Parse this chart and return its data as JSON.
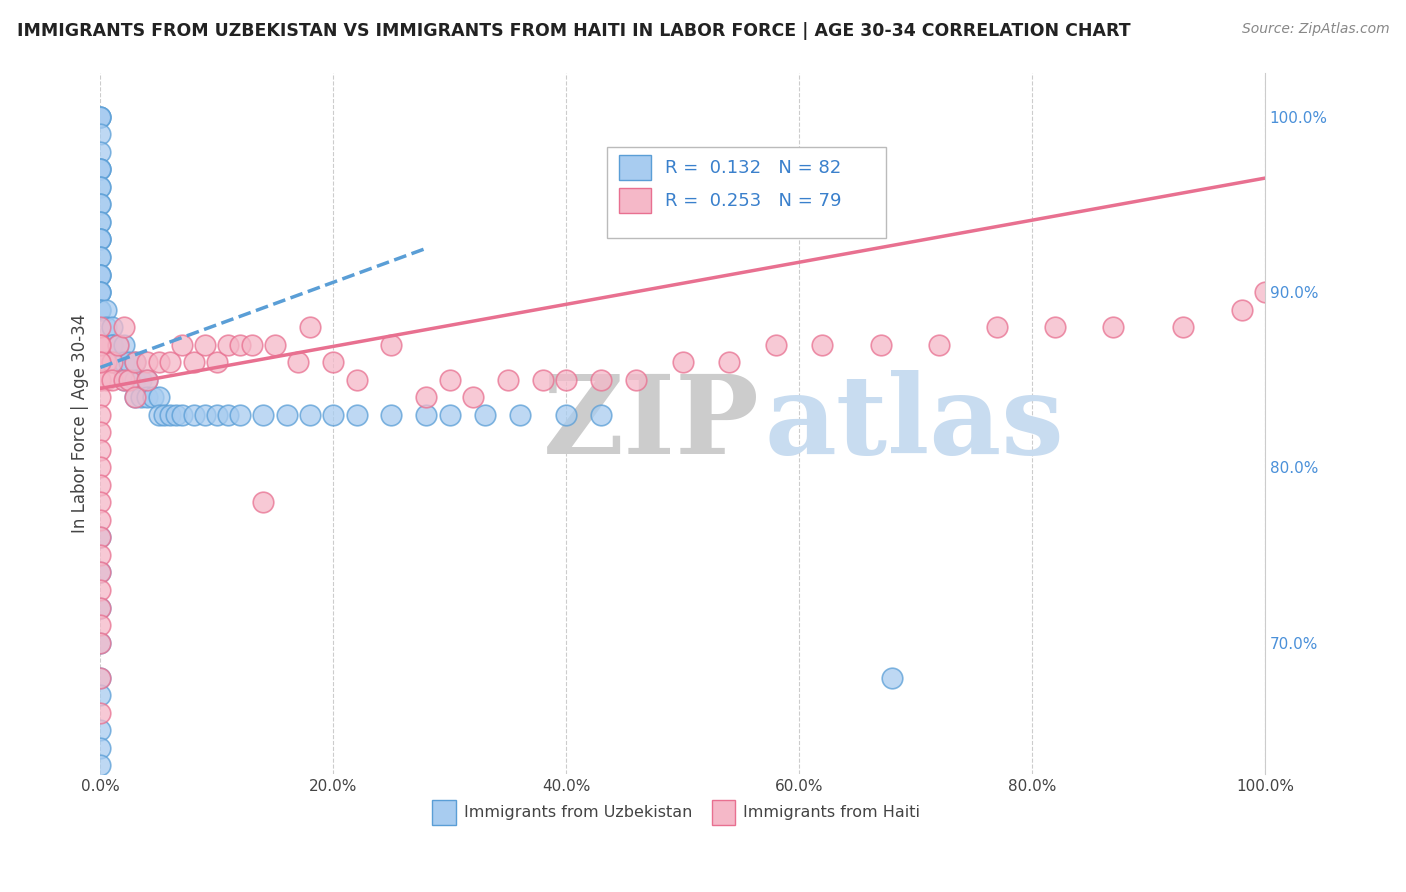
{
  "title": "IMMIGRANTS FROM UZBEKISTAN VS IMMIGRANTS FROM HAITI IN LABOR FORCE | AGE 30-34 CORRELATION CHART",
  "source": "Source: ZipAtlas.com",
  "ylabel": "In Labor Force | Age 30-34",
  "xlim": [
    0,
    1.0
  ],
  "ylim": [
    0.625,
    1.025
  ],
  "legend_r1": "0.132",
  "legend_n1": "82",
  "legend_r2": "0.253",
  "legend_n2": "79",
  "color_uzbekistan_fill": "#A8CCF0",
  "color_uzbekistan_edge": "#5A9ED6",
  "color_haiti_fill": "#F5B8C8",
  "color_haiti_edge": "#E87090",
  "color_line_uz": "#5A9ED6",
  "color_line_ht": "#E87090",
  "uz_x": [
    0.0,
    0.0,
    0.0,
    0.0,
    0.0,
    0.0,
    0.0,
    0.0,
    0.0,
    0.0,
    0.0,
    0.0,
    0.0,
    0.0,
    0.0,
    0.0,
    0.0,
    0.0,
    0.0,
    0.0,
    0.0,
    0.0,
    0.0,
    0.0,
    0.0,
    0.0,
    0.0,
    0.005,
    0.005,
    0.005,
    0.01,
    0.01,
    0.01,
    0.01,
    0.015,
    0.015,
    0.02,
    0.02,
    0.02,
    0.025,
    0.025,
    0.03,
    0.03,
    0.03,
    0.035,
    0.035,
    0.04,
    0.04,
    0.045,
    0.05,
    0.05,
    0.055,
    0.06,
    0.065,
    0.07,
    0.08,
    0.09,
    0.1,
    0.11,
    0.12,
    0.14,
    0.16,
    0.18,
    0.2,
    0.22,
    0.25,
    0.28,
    0.3,
    0.33,
    0.36,
    0.4,
    0.43,
    0.0,
    0.0,
    0.0,
    0.0,
    0.0,
    0.0,
    0.0,
    0.0,
    0.68,
    0.0
  ],
  "uz_y": [
    1.0,
    1.0,
    1.0,
    0.99,
    0.98,
    0.97,
    0.97,
    0.97,
    0.96,
    0.96,
    0.95,
    0.95,
    0.94,
    0.94,
    0.93,
    0.93,
    0.93,
    0.92,
    0.92,
    0.91,
    0.91,
    0.91,
    0.9,
    0.9,
    0.9,
    0.89,
    0.89,
    0.89,
    0.88,
    0.87,
    0.88,
    0.87,
    0.87,
    0.86,
    0.87,
    0.86,
    0.87,
    0.86,
    0.85,
    0.86,
    0.85,
    0.86,
    0.85,
    0.84,
    0.85,
    0.84,
    0.85,
    0.84,
    0.84,
    0.84,
    0.83,
    0.83,
    0.83,
    0.83,
    0.83,
    0.83,
    0.83,
    0.83,
    0.83,
    0.83,
    0.83,
    0.83,
    0.83,
    0.83,
    0.83,
    0.83,
    0.83,
    0.83,
    0.83,
    0.83,
    0.83,
    0.83,
    0.76,
    0.74,
    0.72,
    0.7,
    0.68,
    0.67,
    0.65,
    0.64,
    0.68,
    0.63
  ],
  "ht_x": [
    0.0,
    0.0,
    0.0,
    0.0,
    0.0,
    0.0,
    0.0,
    0.0,
    0.0,
    0.0,
    0.0,
    0.005,
    0.005,
    0.01,
    0.01,
    0.015,
    0.02,
    0.02,
    0.025,
    0.03,
    0.03,
    0.04,
    0.04,
    0.05,
    0.06,
    0.07,
    0.08,
    0.09,
    0.1,
    0.11,
    0.12,
    0.13,
    0.14,
    0.15,
    0.17,
    0.18,
    0.2,
    0.22,
    0.25,
    0.28,
    0.3,
    0.32,
    0.35,
    0.38,
    0.4,
    0.43,
    0.46,
    0.5,
    0.54,
    0.58,
    0.62,
    0.67,
    0.72,
    0.77,
    0.82,
    0.87,
    0.93,
    0.98,
    1.0,
    0.0,
    0.0,
    0.0,
    0.0,
    0.0,
    0.0,
    0.0,
    0.0,
    0.0,
    0.0,
    0.0,
    0.0,
    0.0,
    0.0,
    0.0,
    0.0,
    0.0,
    0.0,
    0.0,
    0.0
  ],
  "ht_y": [
    0.87,
    0.87,
    0.87,
    0.87,
    0.87,
    0.86,
    0.86,
    0.86,
    0.86,
    0.85,
    0.85,
    0.86,
    0.85,
    0.86,
    0.85,
    0.87,
    0.88,
    0.85,
    0.85,
    0.86,
    0.84,
    0.86,
    0.85,
    0.86,
    0.86,
    0.87,
    0.86,
    0.87,
    0.86,
    0.87,
    0.87,
    0.87,
    0.78,
    0.87,
    0.86,
    0.88,
    0.86,
    0.85,
    0.87,
    0.84,
    0.85,
    0.84,
    0.85,
    0.85,
    0.85,
    0.85,
    0.85,
    0.86,
    0.86,
    0.87,
    0.87,
    0.87,
    0.87,
    0.88,
    0.88,
    0.88,
    0.88,
    0.89,
    0.9,
    0.88,
    0.87,
    0.86,
    0.84,
    0.83,
    0.82,
    0.81,
    0.8,
    0.79,
    0.78,
    0.77,
    0.76,
    0.75,
    0.74,
    0.73,
    0.72,
    0.71,
    0.7,
    0.68,
    0.66
  ]
}
